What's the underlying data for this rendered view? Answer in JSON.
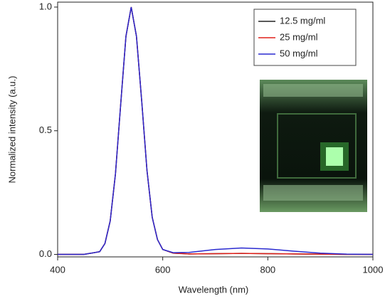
{
  "chart_data": {
    "type": "line",
    "x_label": "Wavelength (nm)",
    "y_label": "Normalized intensity (a.u.)",
    "x": [
      400,
      450,
      480,
      490,
      500,
      510,
      520,
      530,
      540,
      550,
      560,
      570,
      580,
      590,
      600,
      620,
      650,
      700,
      750,
      800,
      850,
      900,
      950,
      1000
    ],
    "series": [
      {
        "name": "12.5 mg/ml",
        "color": "#222222",
        "values": [
          0,
          0,
          0.011,
          0.044,
          0.135,
          0.325,
          0.607,
          0.882,
          1,
          0.882,
          0.62,
          0.34,
          0.15,
          0.06,
          0.02,
          0.005,
          0.002,
          0.003,
          0.004,
          0.003,
          0.002,
          0.001,
          0,
          0
        ]
      },
      {
        "name": "25 mg/ml",
        "color": "#e0201a",
        "values": [
          0,
          0,
          0.011,
          0.044,
          0.135,
          0.325,
          0.607,
          0.882,
          1,
          0.882,
          0.62,
          0.34,
          0.15,
          0.06,
          0.02,
          0.005,
          0.002,
          0.003,
          0.004,
          0.003,
          0.002,
          0.001,
          0,
          0
        ]
      },
      {
        "name": "50 mg/ml",
        "color": "#2a2ad0",
        "values": [
          0,
          0,
          0.011,
          0.044,
          0.135,
          0.325,
          0.607,
          0.882,
          1,
          0.882,
          0.62,
          0.34,
          0.15,
          0.06,
          0.02,
          0.007,
          0.008,
          0.02,
          0.026,
          0.022,
          0.013,
          0.005,
          0.001,
          0
        ]
      }
    ],
    "xlim": [
      400,
      1000
    ],
    "xticks": [
      400,
      600,
      800,
      1000
    ],
    "ylim": [
      -0.01,
      1.02
    ],
    "yticks": [
      {
        "value": 0,
        "label": "0.0"
      },
      0.5,
      {
        "value": 1,
        "label": "1.0"
      }
    ],
    "legend": "upper right"
  }
}
